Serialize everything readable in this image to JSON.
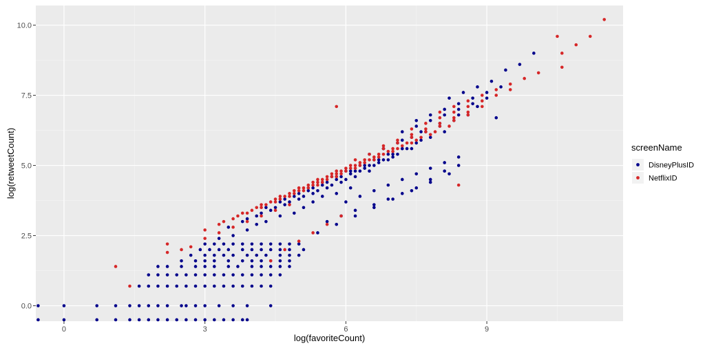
{
  "chart_data": {
    "type": "scatter",
    "xlabel": "log(favoriteCount)",
    "ylabel": "log(retweetCount)",
    "xlim": [
      -0.6,
      11.9
    ],
    "ylim": [
      -0.55,
      10.7
    ],
    "x_ticks": [
      0,
      3,
      6,
      9
    ],
    "x_tick_labels": [
      "0",
      "3",
      "6",
      "9"
    ],
    "y_ticks": [
      0,
      2.5,
      5,
      7.5,
      10
    ],
    "y_tick_labels": [
      "0.0",
      "2.5",
      "5.0",
      "7.5",
      "10.0"
    ],
    "grid": true,
    "legend": {
      "title": "screenName",
      "placement": "right",
      "entries": [
        "DisneyPlusID",
        "NetflixID"
      ]
    },
    "series": [
      {
        "name": "DisneyPlusID",
        "color": "#00008B",
        "x": [
          -0.55,
          0,
          0.7,
          1.1,
          1.4,
          1.6,
          1.8,
          2.0,
          2.2,
          2.5,
          2.6,
          2.8,
          3.0,
          3.3,
          3.6,
          3.9,
          4.4,
          -0.55,
          0,
          0.7,
          1.1,
          1.4,
          1.6,
          1.8,
          2.0,
          2.2,
          2.4,
          2.6,
          2.8,
          3.0,
          3.2,
          3.4,
          3.6,
          3.8,
          3.9,
          1.6,
          1.8,
          2.0,
          2.2,
          2.4,
          2.6,
          2.8,
          3.0,
          3.2,
          3.4,
          3.6,
          3.8,
          4.0,
          4.2,
          4.4,
          1.8,
          2.0,
          2.2,
          2.4,
          2.6,
          2.8,
          3.0,
          3.2,
          3.4,
          3.6,
          3.8,
          4.0,
          4.2,
          4.4,
          4.6,
          2.0,
          2.2,
          2.5,
          2.8,
          3.0,
          3.2,
          3.5,
          3.7,
          4.0,
          4.2,
          4.4,
          4.6,
          4.8,
          2.5,
          2.8,
          3.0,
          3.2,
          3.5,
          3.8,
          4.0,
          4.2,
          4.4,
          4.6,
          4.8,
          2.7,
          3.0,
          3.2,
          3.4,
          3.6,
          3.9,
          4.1,
          4.3,
          4.6,
          4.8,
          5.0,
          2.9,
          3.1,
          3.3,
          3.5,
          3.8,
          4.0,
          4.2,
          4.4,
          4.6,
          4.8,
          5.1,
          3.0,
          3.2,
          3.4,
          3.6,
          3.8,
          4.0,
          4.2,
          4.4,
          4.6,
          4.8,
          5.0,
          3.3,
          3.6,
          3.9,
          4.1,
          4.3,
          4.6,
          4.9,
          5.1,
          5.3,
          5.5,
          5.8,
          6.1,
          3.5,
          3.8,
          4.1,
          4.4,
          4.7,
          5.0,
          5.3,
          5.6,
          5.9,
          6.2,
          6.5,
          3.9,
          4.2,
          4.5,
          4.8,
          5.1,
          5.4,
          5.7,
          6.0,
          6.3,
          6.6,
          6.9,
          4.3,
          4.6,
          4.9,
          5.2,
          5.5,
          5.8,
          6.1,
          6.4,
          6.7,
          7.0,
          7.2,
          4.7,
          5.0,
          5.3,
          5.6,
          5.9,
          6.2,
          6.5,
          6.8,
          7.1,
          7.4,
          5.2,
          5.5,
          5.8,
          6.1,
          6.4,
          6.7,
          7.0,
          7.3,
          7.6,
          5.7,
          6.0,
          6.3,
          6.6,
          6.9,
          7.2,
          7.5,
          7.8,
          8.1,
          5.6,
          5.9,
          6.2,
          6.6,
          6.9,
          7.2,
          7.5,
          7.8,
          8.1,
          8.4,
          6.0,
          6.3,
          6.6,
          6.9,
          7.2,
          7.5,
          7.8,
          8.1,
          8.4,
          6.5,
          6.8,
          7.1,
          7.4,
          7.7,
          8.0,
          8.3,
          8.6,
          7.2,
          7.5,
          7.8,
          8.1,
          8.4,
          8.7,
          9.0,
          7.5,
          7.8,
          8.1,
          8.4,
          8.7,
          9.0,
          9.3,
          8.2,
          8.5,
          8.8,
          9.1,
          9.4,
          9.7,
          10.0,
          5.4,
          5.8,
          6.2,
          6.6,
          7.0,
          7.4,
          7.8,
          8.2,
          6.8,
          7.2,
          7.6,
          8.0,
          8.4,
          8.8,
          9.2
        ],
        "y": [
          0,
          0,
          0,
          0,
          0,
          0,
          0,
          0,
          0,
          0,
          0,
          0,
          0,
          0,
          0,
          0,
          0,
          -0.5,
          -0.5,
          -0.5,
          -0.5,
          -0.5,
          -0.5,
          -0.5,
          -0.5,
          -0.5,
          -0.5,
          -0.5,
          -0.5,
          -0.5,
          -0.5,
          -0.5,
          -0.5,
          -0.5,
          -0.5,
          0.7,
          0.7,
          0.7,
          0.7,
          0.7,
          0.7,
          0.7,
          0.7,
          0.7,
          0.7,
          0.7,
          0.7,
          0.7,
          0.7,
          0.7,
          1.1,
          1.1,
          1.1,
          1.1,
          1.1,
          1.1,
          1.1,
          1.1,
          1.1,
          1.1,
          1.1,
          1.1,
          1.1,
          1.1,
          1.1,
          1.4,
          1.4,
          1.4,
          1.4,
          1.4,
          1.4,
          1.4,
          1.4,
          1.4,
          1.4,
          1.4,
          1.4,
          1.4,
          1.6,
          1.6,
          1.6,
          1.6,
          1.6,
          1.6,
          1.6,
          1.6,
          1.6,
          1.6,
          1.6,
          1.8,
          1.8,
          1.8,
          1.8,
          1.8,
          1.8,
          1.8,
          1.8,
          1.8,
          1.8,
          1.8,
          2.0,
          2.0,
          2.0,
          2.0,
          2.0,
          2.0,
          2.0,
          2.0,
          2.0,
          2.0,
          2.0,
          2.2,
          2.2,
          2.2,
          2.2,
          2.2,
          2.2,
          2.2,
          2.2,
          2.2,
          2.2,
          2.2,
          2.4,
          2.5,
          2.7,
          2.9,
          3.0,
          3.2,
          3.3,
          3.5,
          3.7,
          3.9,
          4.0,
          4.2,
          2.8,
          3.0,
          3.2,
          3.4,
          3.6,
          3.8,
          4.0,
          4.2,
          4.4,
          4.6,
          4.8,
          3.1,
          3.3,
          3.5,
          3.7,
          3.9,
          4.1,
          4.3,
          4.5,
          4.8,
          5.0,
          5.2,
          3.5,
          3.7,
          3.9,
          4.1,
          4.3,
          4.5,
          4.7,
          4.9,
          5.1,
          5.3,
          5.6,
          3.8,
          4.0,
          4.2,
          4.4,
          4.6,
          4.8,
          5.0,
          5.2,
          5.4,
          5.6,
          4.2,
          4.4,
          4.6,
          4.8,
          5.0,
          5.2,
          5.4,
          5.6,
          5.9,
          4.6,
          4.8,
          5.0,
          5.2,
          5.4,
          5.6,
          5.8,
          6.0,
          6.2,
          3.0,
          3.2,
          3.4,
          3.6,
          3.8,
          4.0,
          4.2,
          4.5,
          4.8,
          5.0,
          3.7,
          3.9,
          4.1,
          4.3,
          4.5,
          4.7,
          4.9,
          5.1,
          5.3,
          5.4,
          5.6,
          5.8,
          6.0,
          6.2,
          6.4,
          6.6,
          6.8,
          6.2,
          6.4,
          6.6,
          6.8,
          7.0,
          7.2,
          7.4,
          6.6,
          6.8,
          7.0,
          7.2,
          7.4,
          7.6,
          7.8,
          7.4,
          7.6,
          7.8,
          8.0,
          8.4,
          8.6,
          9.0,
          2.6,
          2.9,
          3.2,
          3.5,
          3.8,
          4.1,
          4.4,
          4.7,
          5.6,
          5.9,
          6.2,
          6.5,
          6.8,
          7.1,
          6.7
        ]
      },
      {
        "name": "NetflixID",
        "color": "#D62728",
        "x": [
          1.1,
          1.4,
          2.2,
          2.2,
          2.5,
          2.7,
          3.0,
          3.3,
          3.6,
          3.9,
          4.2,
          4.5,
          4.8,
          3.0,
          3.3,
          3.6,
          3.9,
          4.2,
          4.5,
          4.8,
          5.1,
          5.4,
          3.4,
          3.7,
          4.0,
          4.3,
          4.6,
          4.9,
          5.2,
          5.5,
          5.8,
          3.8,
          4.1,
          4.4,
          4.7,
          5.0,
          5.3,
          5.6,
          5.9,
          6.2,
          4.2,
          4.5,
          4.8,
          5.1,
          5.4,
          5.7,
          6.0,
          6.3,
          6.6,
          4.6,
          4.9,
          5.2,
          5.5,
          5.8,
          6.1,
          6.4,
          6.7,
          7.0,
          5.0,
          5.3,
          5.6,
          5.9,
          6.2,
          6.5,
          6.8,
          7.1,
          7.4,
          5.4,
          5.7,
          6.0,
          6.3,
          6.6,
          6.9,
          7.2,
          7.5,
          7.8,
          5.8,
          6.1,
          6.4,
          6.7,
          7.0,
          7.3,
          7.6,
          7.9,
          8.2,
          6.2,
          6.5,
          6.8,
          7.1,
          7.4,
          7.7,
          8.0,
          8.3,
          8.6,
          6.8,
          7.1,
          7.4,
          7.7,
          8.0,
          8.3,
          8.6,
          8.9,
          7.4,
          7.7,
          8.0,
          8.3,
          8.6,
          8.9,
          9.2,
          9.5,
          8.0,
          8.3,
          8.6,
          8.9,
          9.2,
          9.5,
          9.8,
          10.1,
          5.8,
          8.4,
          10.5,
          10.6,
          10.6,
          10.9,
          11.2,
          11.5,
          4.4,
          4.7,
          5.0,
          5.3,
          5.6,
          5.9
        ],
        "y": [
          1.4,
          0.7,
          2.2,
          1.9,
          2.0,
          2.1,
          2.4,
          2.6,
          2.8,
          3.0,
          3.2,
          3.4,
          3.6,
          2.7,
          2.9,
          3.1,
          3.3,
          3.5,
          3.7,
          3.9,
          4.1,
          4.3,
          3.0,
          3.2,
          3.4,
          3.6,
          3.8,
          4.0,
          4.2,
          4.4,
          4.6,
          3.3,
          3.5,
          3.7,
          3.9,
          4.1,
          4.3,
          4.5,
          4.7,
          4.9,
          3.6,
          3.8,
          4.0,
          4.2,
          4.4,
          4.6,
          4.8,
          5.0,
          5.2,
          3.9,
          4.1,
          4.3,
          4.5,
          4.7,
          4.9,
          5.1,
          5.3,
          5.5,
          4.2,
          4.4,
          4.6,
          4.8,
          5.0,
          5.2,
          5.4,
          5.6,
          5.8,
          4.5,
          4.7,
          4.9,
          5.1,
          5.3,
          5.5,
          5.7,
          5.9,
          6.1,
          4.8,
          5.0,
          5.2,
          5.4,
          5.6,
          5.8,
          6.0,
          6.2,
          6.4,
          5.2,
          5.4,
          5.6,
          5.8,
          6.0,
          6.2,
          6.4,
          6.6,
          6.8,
          5.7,
          5.9,
          6.1,
          6.3,
          6.5,
          6.7,
          6.9,
          7.1,
          6.3,
          6.5,
          6.7,
          6.9,
          7.1,
          7.3,
          7.5,
          7.7,
          6.9,
          7.1,
          7.3,
          7.5,
          7.7,
          7.9,
          8.1,
          8.3,
          7.1,
          4.3,
          9.6,
          9.0,
          8.5,
          9.3,
          9.6,
          10.2,
          1.6,
          2.0,
          2.3,
          2.6,
          2.9,
          3.2
        ]
      }
    ]
  }
}
